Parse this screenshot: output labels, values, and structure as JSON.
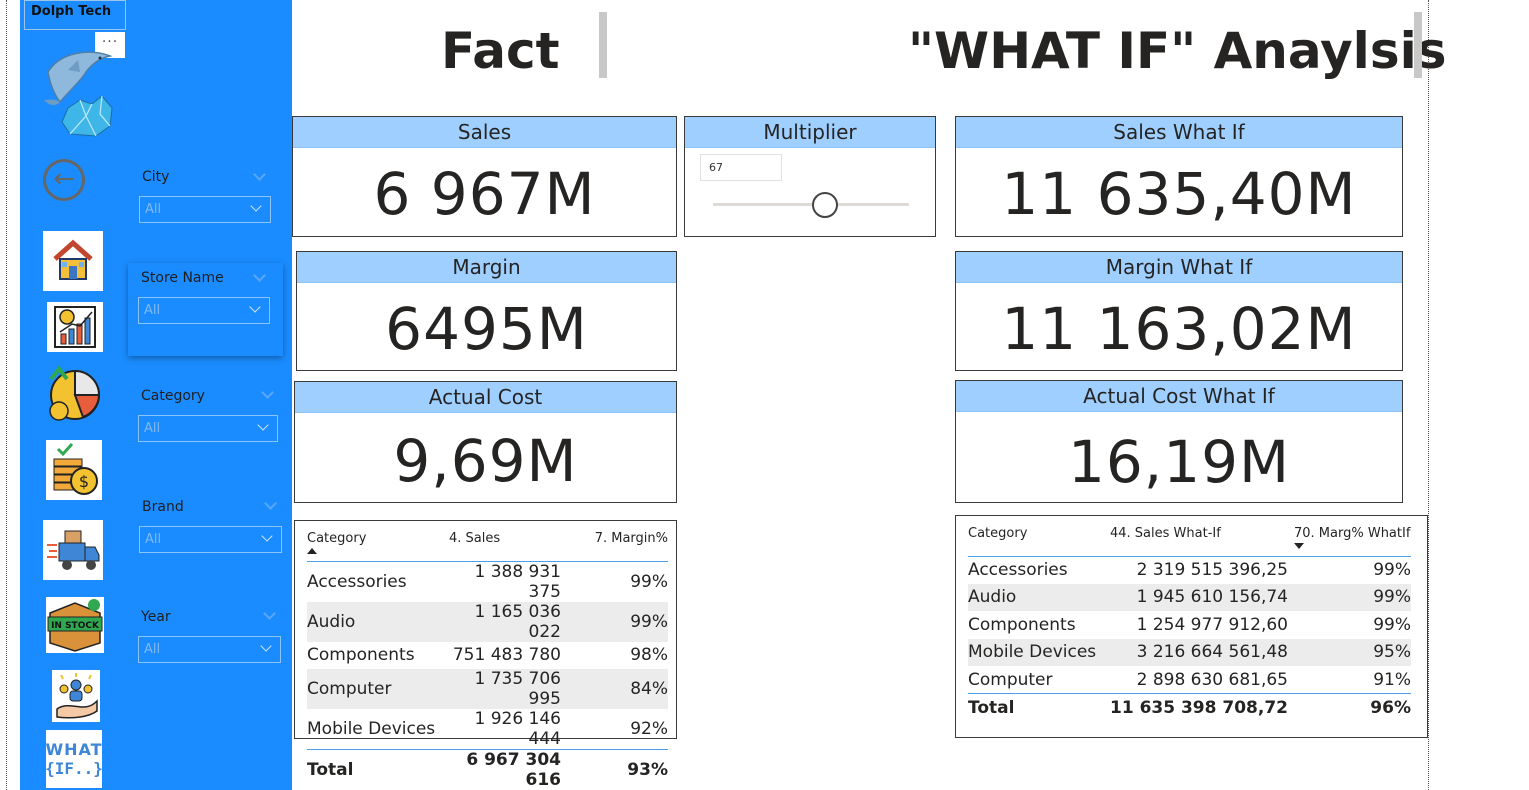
{
  "brand": {
    "name": "Dolph Tech",
    "more_label": "···"
  },
  "nav": {
    "icons": [
      "back-arrow-icon",
      "house-icon",
      "growth-chart-icon",
      "pie-chart-icon",
      "coins-stack-icon",
      "delivery-truck-icon",
      "in-stock-box-icon",
      "customers-hand-icon",
      "what-if-icon"
    ],
    "instock_text": "IN STOCK",
    "whatif_text": "WHAT",
    "whatif_sub": "{IF..}"
  },
  "slicers": [
    {
      "label": "City",
      "value": "All"
    },
    {
      "label": "Store Name",
      "value": "All"
    },
    {
      "label": "Category",
      "value": "All"
    },
    {
      "label": "Brand",
      "value": "All"
    },
    {
      "label": "Year",
      "value": "All"
    }
  ],
  "titles": {
    "fact": "Fact",
    "whatif": "\"WHAT IF\" Anaylsis"
  },
  "cards": {
    "sales": {
      "label": "Sales",
      "value": "6 967M"
    },
    "margin": {
      "label": "Margin",
      "value": "6495M"
    },
    "actual_cost": {
      "label": "Actual Cost",
      "value": "9,69M"
    },
    "sales_whatif": {
      "label": "Sales What If",
      "value": "11 635,40M"
    },
    "margin_whatif": {
      "label": "Margin What If",
      "value": "11 163,02M"
    },
    "actual_cost_whatif": {
      "label": "Actual Cost What If",
      "value": "16,19M"
    }
  },
  "multiplier": {
    "label": "Multiplier",
    "value": "67",
    "slider_fraction": 0.56
  },
  "fact_table": {
    "headers": [
      "Category",
      "4. Sales",
      "7. Margin%"
    ],
    "rows": [
      [
        "Accessories",
        "1 388 931 375",
        "99%"
      ],
      [
        "Audio",
        "1 165 036 022",
        "99%"
      ],
      [
        "Components",
        "751 483 780",
        "98%"
      ],
      [
        "Computer",
        "1 735 706 995",
        "84%"
      ],
      [
        "Mobile Devices",
        "1 926 146 444",
        "92%"
      ]
    ],
    "total": [
      "Total",
      "6 967 304 616",
      "93%"
    ]
  },
  "whatif_table": {
    "headers": [
      "Category",
      "44. Sales What-If",
      "70. Marg% WhatIf"
    ],
    "rows": [
      [
        "Accessories",
        "2 319 515 396,25",
        "99%"
      ],
      [
        "Audio",
        "1 945 610 156,74",
        "99%"
      ],
      [
        "Components",
        "1 254 977 912,60",
        "99%"
      ],
      [
        "Mobile Devices",
        "3 216 664 561,48",
        "95%"
      ],
      [
        "Computer",
        "2 898 630 681,65",
        "91%"
      ]
    ],
    "total": [
      "Total",
      "11 635 398 708,72",
      "96%"
    ]
  }
}
